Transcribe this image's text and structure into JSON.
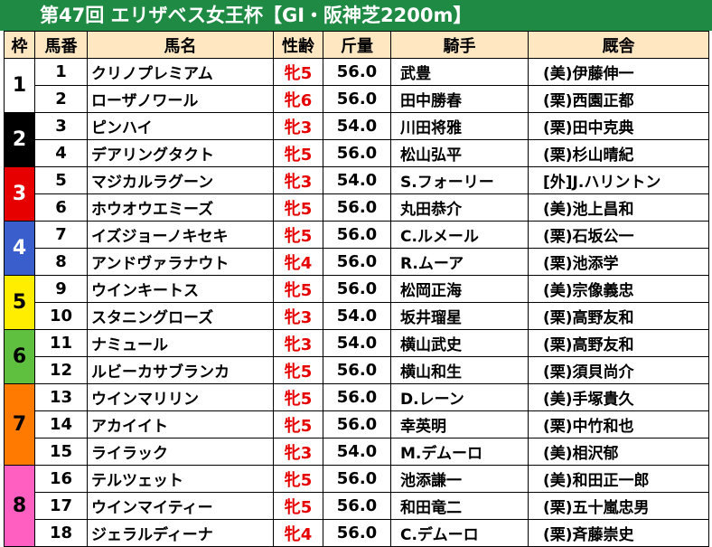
{
  "title": "第47回 エリザベス女王杯【GI・阪神芝2200m】",
  "headers": [
    "枠",
    "馬番",
    "馬名",
    "性齢",
    "斤量",
    "騎手",
    "厩舎"
  ],
  "colors": {
    "banner": "#1e8a43",
    "header_bg": "#ffe7c2",
    "sex_age_text": "#e60000"
  },
  "frames": [
    {
      "label": "1",
      "bg": "#ffffff",
      "fg": "#000000",
      "rows": 2
    },
    {
      "label": "2",
      "bg": "#000000",
      "fg": "#ffffff",
      "rows": 2
    },
    {
      "label": "3",
      "bg": "#e60000",
      "fg": "#ffffff",
      "rows": 2
    },
    {
      "label": "4",
      "bg": "#3a5fcd",
      "fg": "#ffffff",
      "rows": 2
    },
    {
      "label": "5",
      "bg": "#ffee00",
      "fg": "#000000",
      "rows": 2
    },
    {
      "label": "6",
      "bg": "#5fbf3f",
      "fg": "#000000",
      "rows": 2
    },
    {
      "label": "7",
      "bg": "#ff7a00",
      "fg": "#000000",
      "rows": 3
    },
    {
      "label": "8",
      "bg": "#ff5fc0",
      "fg": "#000000",
      "rows": 3
    }
  ],
  "rows": [
    {
      "num": "1",
      "name": "クリノプレミアム",
      "sex_age": "牝5",
      "weight": "56.0",
      "jockey": "武豊",
      "trainer": "(美)伊藤伸一"
    },
    {
      "num": "2",
      "name": "ローザノワール",
      "sex_age": "牝6",
      "weight": "56.0",
      "jockey": "田中勝春",
      "trainer": "(栗)西園正都"
    },
    {
      "num": "3",
      "name": "ピンハイ",
      "sex_age": "牝3",
      "weight": "54.0",
      "jockey": "川田将雅",
      "trainer": "(栗)田中克典"
    },
    {
      "num": "4",
      "name": "デアリングタクト",
      "sex_age": "牝5",
      "weight": "56.0",
      "jockey": "松山弘平",
      "trainer": "(栗)杉山晴紀"
    },
    {
      "num": "5",
      "name": "マジカルラグーン",
      "sex_age": "牝3",
      "weight": "54.0",
      "jockey": "S.フォーリー",
      "trainer": "[外]J.ハリントン"
    },
    {
      "num": "6",
      "name": "ホウオウエミーズ",
      "sex_age": "牝5",
      "weight": "56.0",
      "jockey": "丸田恭介",
      "trainer": "(美)池上昌和"
    },
    {
      "num": "7",
      "name": "イズジョーノキセキ",
      "sex_age": "牝5",
      "weight": "56.0",
      "jockey": "C.ルメール",
      "trainer": "(栗)石坂公一"
    },
    {
      "num": "8",
      "name": "アンドヴァラナウト",
      "sex_age": "牝4",
      "weight": "56.0",
      "jockey": "R.ムーア",
      "trainer": "(栗)池添学"
    },
    {
      "num": "9",
      "name": "ウインキートス",
      "sex_age": "牝5",
      "weight": "56.0",
      "jockey": "松岡正海",
      "trainer": "(美)宗像義忠"
    },
    {
      "num": "10",
      "name": "スタニングローズ",
      "sex_age": "牝3",
      "weight": "54.0",
      "jockey": "坂井瑠星",
      "trainer": "(栗)高野友和"
    },
    {
      "num": "11",
      "name": "ナミュール",
      "sex_age": "牝3",
      "weight": "54.0",
      "jockey": "横山武史",
      "trainer": "(栗)高野友和"
    },
    {
      "num": "12",
      "name": "ルビーカサブランカ",
      "sex_age": "牝5",
      "weight": "56.0",
      "jockey": "横山和生",
      "trainer": "(栗)須貝尚介"
    },
    {
      "num": "13",
      "name": "ウインマリリン",
      "sex_age": "牝5",
      "weight": "56.0",
      "jockey": "D.レーン",
      "trainer": "(美)手塚貴久"
    },
    {
      "num": "14",
      "name": "アカイイト",
      "sex_age": "牝5",
      "weight": "56.0",
      "jockey": "幸英明",
      "trainer": "(栗)中竹和也"
    },
    {
      "num": "15",
      "name": "ライラック",
      "sex_age": "牝3",
      "weight": "54.0",
      "jockey": "M.デムーロ",
      "trainer": "(美)相沢郁"
    },
    {
      "num": "16",
      "name": "テルツェット",
      "sex_age": "牝5",
      "weight": "56.0",
      "jockey": "池添謙一",
      "trainer": "(美)和田正一郎"
    },
    {
      "num": "17",
      "name": "ウインマイティー",
      "sex_age": "牝5",
      "weight": "56.0",
      "jockey": "和田竜二",
      "trainer": "(栗)五十嵐忠男"
    },
    {
      "num": "18",
      "name": "ジェラルディーナ",
      "sex_age": "牝4",
      "weight": "56.0",
      "jockey": "C.デムーロ",
      "trainer": "(栗)斉藤崇史"
    }
  ]
}
